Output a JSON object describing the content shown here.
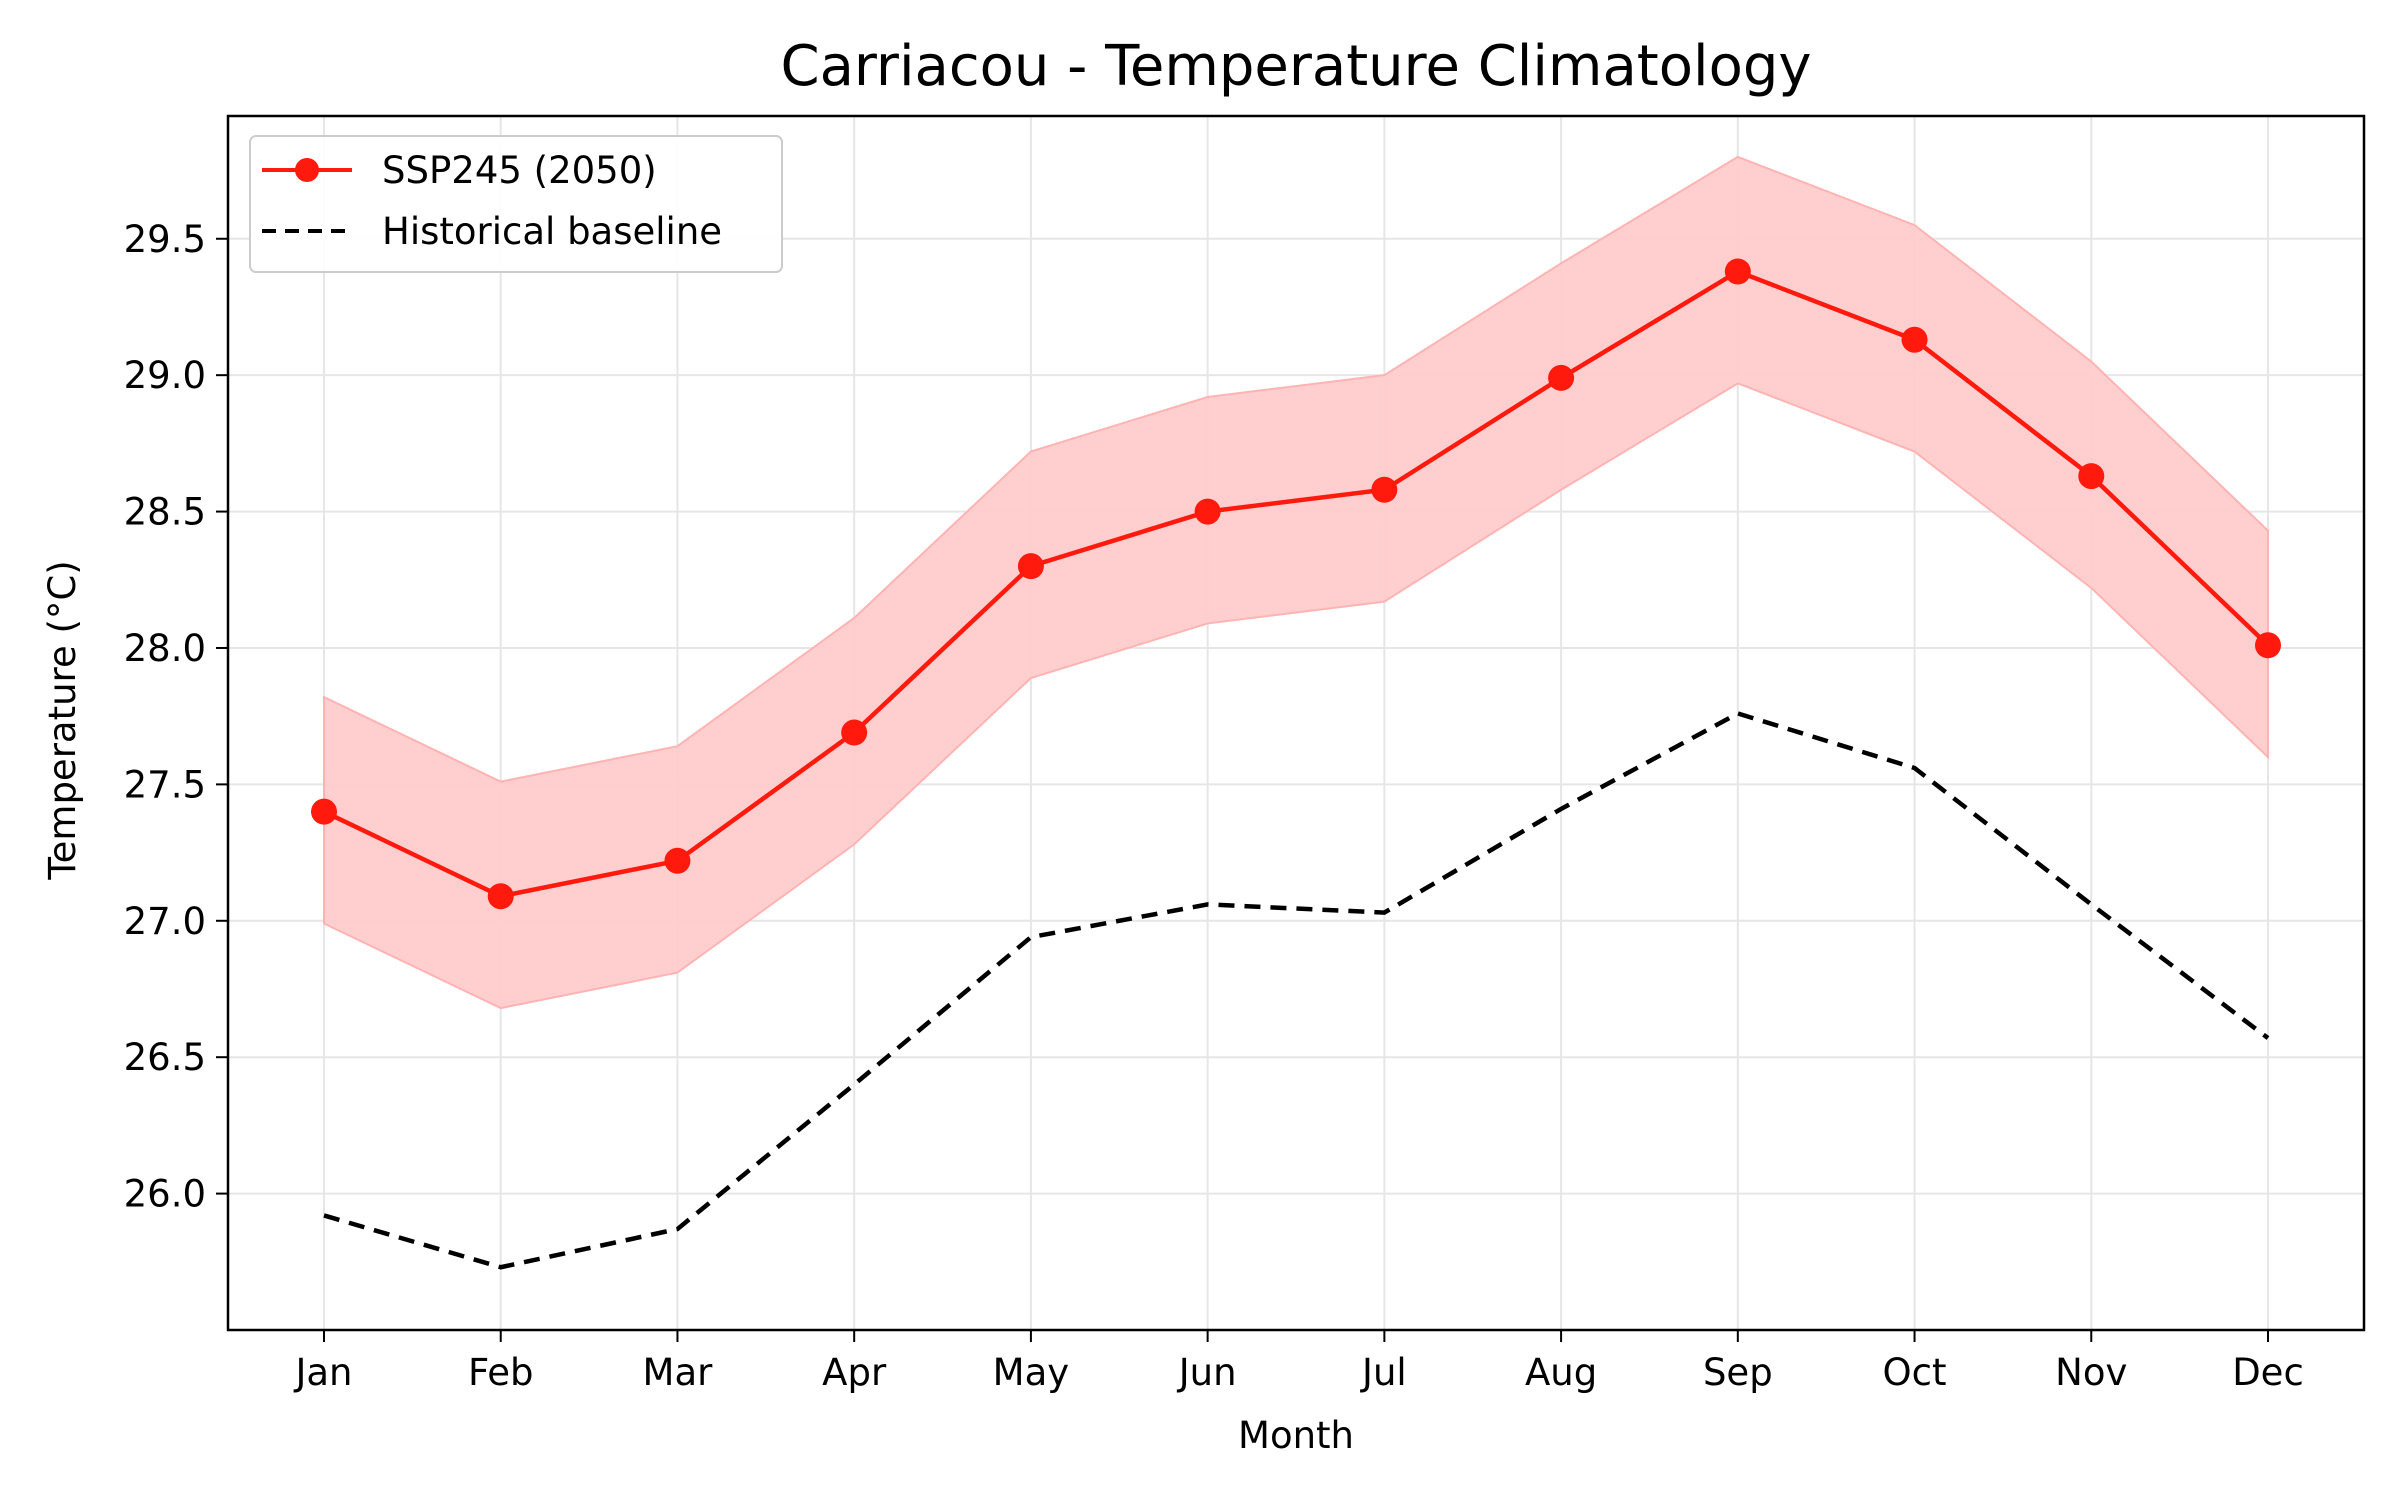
{
  "chart_data": {
    "type": "line",
    "title": "Carriacou - Temperature Climatology",
    "xlabel": "Month",
    "ylabel": "Temperature (°C)",
    "categories": [
      "Jan",
      "Feb",
      "Mar",
      "Apr",
      "May",
      "Jun",
      "Jul",
      "Aug",
      "Sep",
      "Oct",
      "Nov",
      "Dec"
    ],
    "ylim": [
      25.5,
      29.95
    ],
    "yticks": [
      26.0,
      26.5,
      27.0,
      27.5,
      28.0,
      28.5,
      29.0,
      29.5
    ],
    "ytick_labels": [
      "26.0",
      "26.5",
      "27.0",
      "27.5",
      "28.0",
      "28.5",
      "29.0",
      "29.5"
    ],
    "grid": true,
    "legend_position": "top-left",
    "series": [
      {
        "name": "SSP245 (2050)",
        "style": "solid line with circle markers",
        "color": "#ff1a0d",
        "values": [
          27.4,
          27.09,
          27.22,
          27.69,
          28.3,
          28.5,
          28.58,
          28.99,
          29.38,
          29.13,
          28.63,
          28.01
        ]
      },
      {
        "name": "Historical baseline",
        "style": "dashed line",
        "color": "#000000",
        "values": [
          25.92,
          25.73,
          25.87,
          26.4,
          26.94,
          27.06,
          27.03,
          27.41,
          27.76,
          27.56,
          27.06,
          26.57
        ]
      }
    ],
    "band": {
      "series": "SSP245 (2050)",
      "color": "#ffcccc",
      "lower": [
        26.99,
        26.68,
        26.81,
        27.28,
        27.89,
        28.09,
        28.17,
        28.58,
        28.97,
        28.72,
        28.22,
        27.6
      ],
      "upper": [
        27.82,
        27.51,
        27.64,
        28.11,
        28.72,
        28.92,
        29.0,
        29.41,
        29.8,
        29.55,
        29.05,
        28.43
      ]
    }
  }
}
